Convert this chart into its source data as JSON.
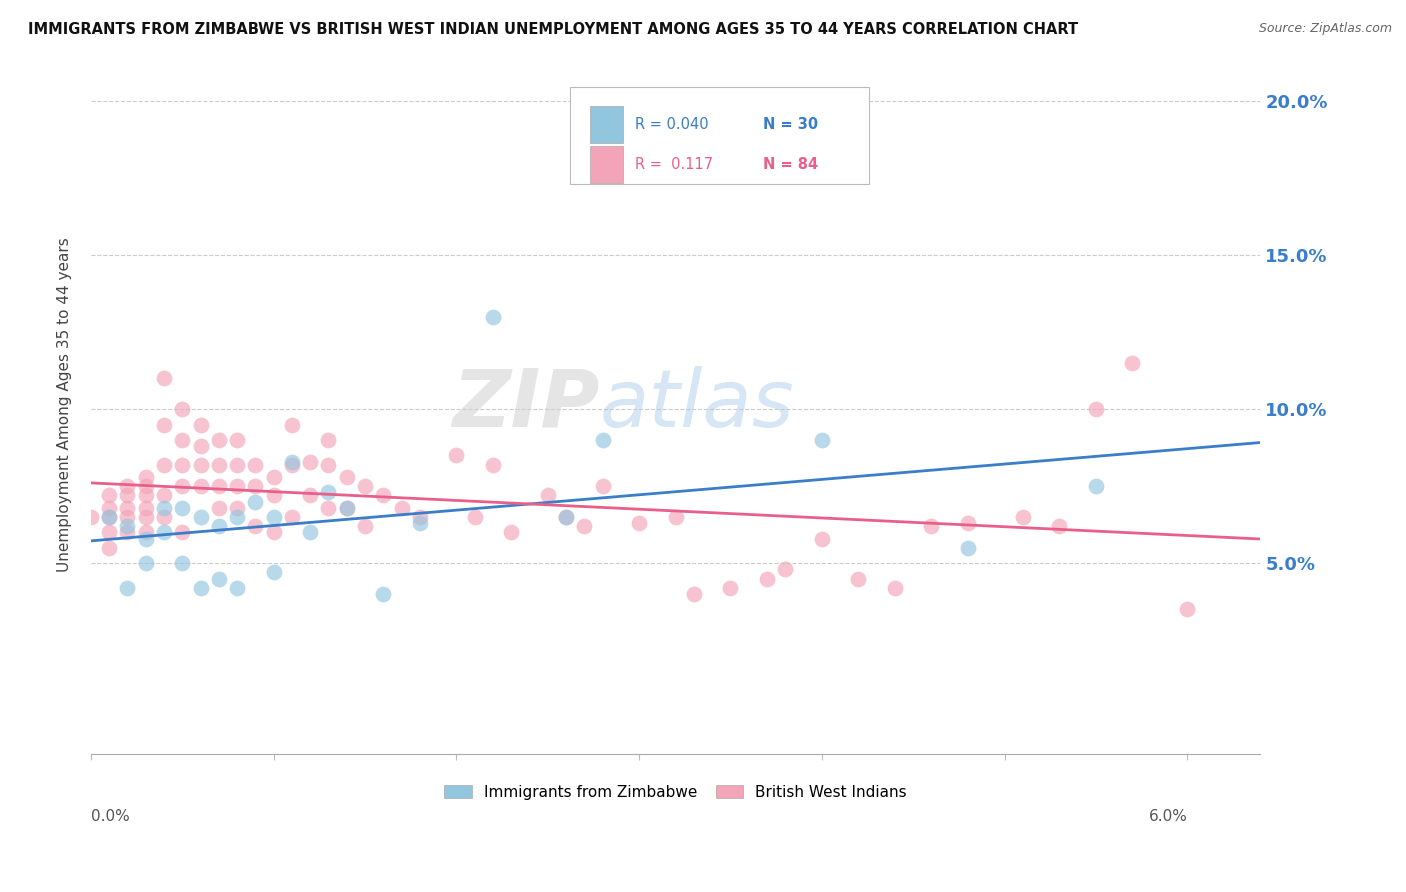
{
  "title": "IMMIGRANTS FROM ZIMBABWE VS BRITISH WEST INDIAN UNEMPLOYMENT AMONG AGES 35 TO 44 YEARS CORRELATION CHART",
  "source": "Source: ZipAtlas.com",
  "ylabel": "Unemployment Among Ages 35 to 44 years",
  "color_blue": "#92c5de",
  "color_pink": "#f4a4b8",
  "color_blue_line": "#3a7dc9",
  "color_pink_line": "#e8608a",
  "color_blue_dark": "#3a7dc9",
  "color_pink_dark": "#e8608a",
  "watermark_zip": "ZIP",
  "watermark_atlas": "atlas",
  "legend_label1": "Immigrants from Zimbabwe",
  "legend_label2": "British West Indians",
  "xlim": [
    0.0,
    0.064
  ],
  "ylim": [
    -0.012,
    0.215
  ],
  "y_ticks": [
    0.05,
    0.1,
    0.15,
    0.2
  ],
  "zim_x": [
    0.001,
    0.002,
    0.002,
    0.003,
    0.003,
    0.004,
    0.004,
    0.005,
    0.005,
    0.006,
    0.006,
    0.007,
    0.007,
    0.008,
    0.008,
    0.009,
    0.01,
    0.01,
    0.011,
    0.012,
    0.013,
    0.014,
    0.016,
    0.018,
    0.022,
    0.026,
    0.028,
    0.04,
    0.048,
    0.055
  ],
  "zim_y": [
    0.065,
    0.062,
    0.042,
    0.058,
    0.05,
    0.068,
    0.06,
    0.068,
    0.05,
    0.065,
    0.042,
    0.062,
    0.045,
    0.065,
    0.042,
    0.07,
    0.065,
    0.047,
    0.083,
    0.06,
    0.073,
    0.068,
    0.04,
    0.063,
    0.13,
    0.065,
    0.09,
    0.09,
    0.055,
    0.075
  ],
  "bwi_x": [
    0.0,
    0.001,
    0.001,
    0.001,
    0.001,
    0.001,
    0.002,
    0.002,
    0.002,
    0.002,
    0.002,
    0.003,
    0.003,
    0.003,
    0.003,
    0.003,
    0.003,
    0.004,
    0.004,
    0.004,
    0.004,
    0.004,
    0.005,
    0.005,
    0.005,
    0.005,
    0.005,
    0.006,
    0.006,
    0.006,
    0.006,
    0.007,
    0.007,
    0.007,
    0.007,
    0.008,
    0.008,
    0.008,
    0.008,
    0.009,
    0.009,
    0.009,
    0.01,
    0.01,
    0.01,
    0.011,
    0.011,
    0.011,
    0.012,
    0.012,
    0.013,
    0.013,
    0.013,
    0.014,
    0.014,
    0.015,
    0.015,
    0.016,
    0.017,
    0.018,
    0.02,
    0.021,
    0.022,
    0.023,
    0.025,
    0.026,
    0.027,
    0.028,
    0.03,
    0.032,
    0.033,
    0.035,
    0.037,
    0.038,
    0.04,
    0.042,
    0.044,
    0.046,
    0.048,
    0.051,
    0.053,
    0.055,
    0.057,
    0.06
  ],
  "bwi_y": [
    0.065,
    0.068,
    0.072,
    0.065,
    0.06,
    0.055,
    0.075,
    0.072,
    0.068,
    0.065,
    0.06,
    0.078,
    0.075,
    0.072,
    0.068,
    0.065,
    0.06,
    0.11,
    0.095,
    0.082,
    0.072,
    0.065,
    0.1,
    0.09,
    0.082,
    0.075,
    0.06,
    0.095,
    0.088,
    0.082,
    0.075,
    0.09,
    0.082,
    0.075,
    0.068,
    0.09,
    0.082,
    0.075,
    0.068,
    0.082,
    0.075,
    0.062,
    0.078,
    0.072,
    0.06,
    0.095,
    0.082,
    0.065,
    0.083,
    0.072,
    0.09,
    0.082,
    0.068,
    0.078,
    0.068,
    0.075,
    0.062,
    0.072,
    0.068,
    0.065,
    0.085,
    0.065,
    0.082,
    0.06,
    0.072,
    0.065,
    0.062,
    0.075,
    0.063,
    0.065,
    0.04,
    0.042,
    0.045,
    0.048,
    0.058,
    0.045,
    0.042,
    0.062,
    0.063,
    0.065,
    0.062,
    0.1,
    0.115,
    0.035
  ]
}
